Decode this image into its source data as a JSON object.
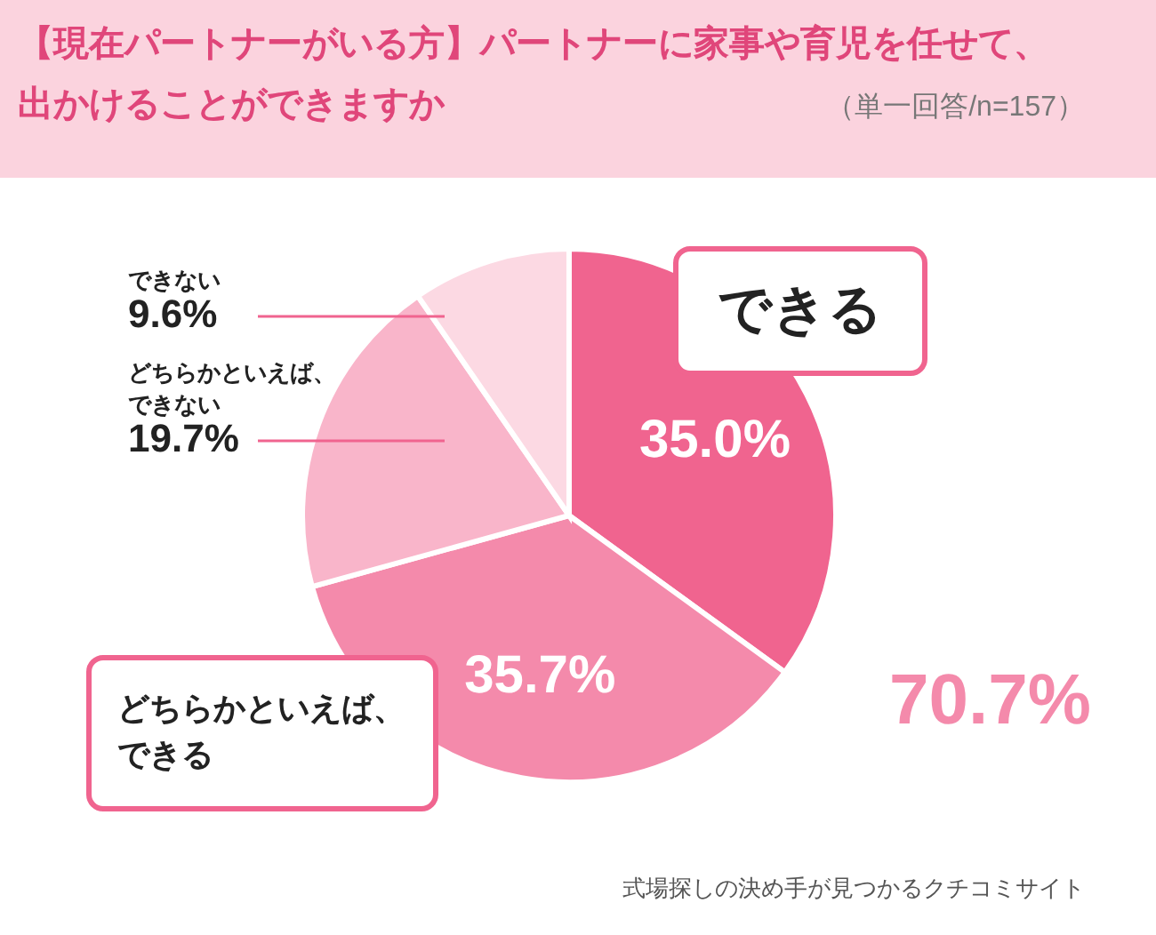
{
  "chart_data": {
    "type": "pie",
    "title": "【現在パートナーがいる方】パートナーに家事や育児を任せて、出かけることができますか",
    "subtitle": "（単一回答/n=157）",
    "categories": [
      "できる",
      "どちらかといえば、できる",
      "どちらかといえば、できない",
      "できない"
    ],
    "values": [
      35.0,
      35.7,
      19.7,
      9.6
    ],
    "value_labels": [
      "35.0%",
      "35.7%",
      "19.7%",
      "9.6%"
    ],
    "colors": [
      "#f0648f",
      "#f48aab",
      "#f9b5ca",
      "#fcd9e3"
    ],
    "annotations": [
      "70.7%",
      "式場探しの決め手が見つかるクチコミサイト"
    ]
  }
}
